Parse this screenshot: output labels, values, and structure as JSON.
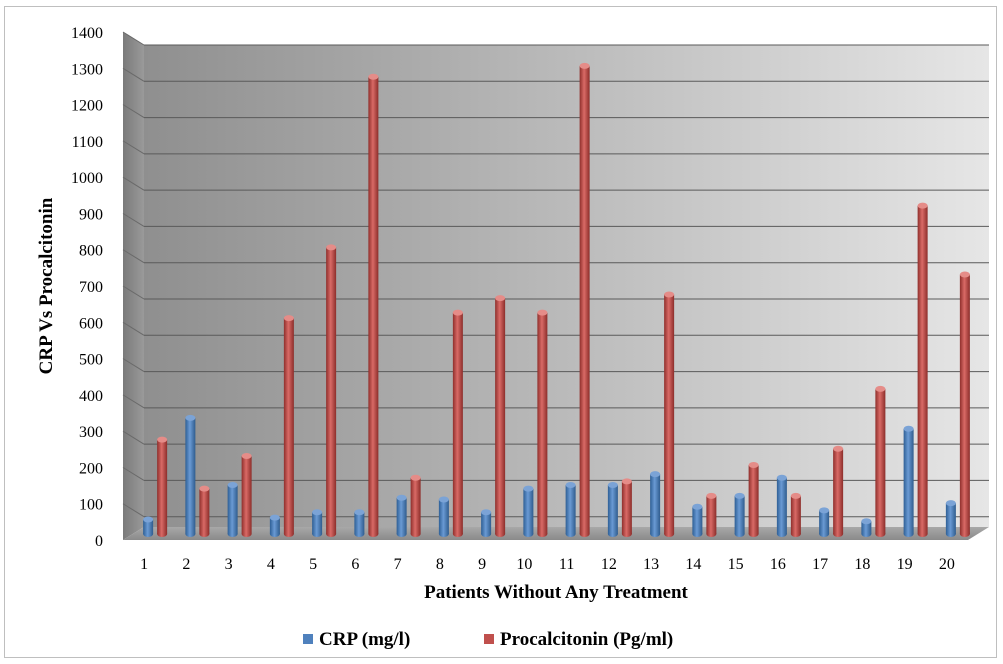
{
  "chart_data": {
    "type": "bar",
    "title": "",
    "xlabel": "Patients Without Any Treatment",
    "ylabel": "CRP Vs Procalcitonin",
    "ylim": [
      0,
      1400
    ],
    "yticks": [
      "0",
      "100",
      "200",
      "300",
      "400",
      "500",
      "600",
      "700",
      "800",
      "900",
      "1000",
      "1100",
      "1200",
      "1300",
      "1400"
    ],
    "categories": [
      "1",
      "2",
      "3",
      "4",
      "5",
      "6",
      "7",
      "8",
      "9",
      "10",
      "11",
      "12",
      "13",
      "14",
      "15",
      "16",
      "17",
      "18",
      "19",
      "20"
    ],
    "series": [
      {
        "name": "CRP (mg/l)",
        "color": "#4f81bd",
        "values": [
          40,
          320,
          135,
          45,
          60,
          60,
          100,
          95,
          60,
          125,
          135,
          135,
          165,
          75,
          105,
          155,
          65,
          35,
          290,
          85
        ]
      },
      {
        "name": "Procalcitonin (Pg/ml)",
        "color": "#c0504d",
        "values": [
          260,
          125,
          215,
          595,
          790,
          1260,
          155,
          610,
          650,
          610,
          1290,
          145,
          660,
          105,
          190,
          105,
          235,
          400,
          905,
          715
        ]
      }
    ],
    "grid": true,
    "legend_position": "bottom"
  }
}
